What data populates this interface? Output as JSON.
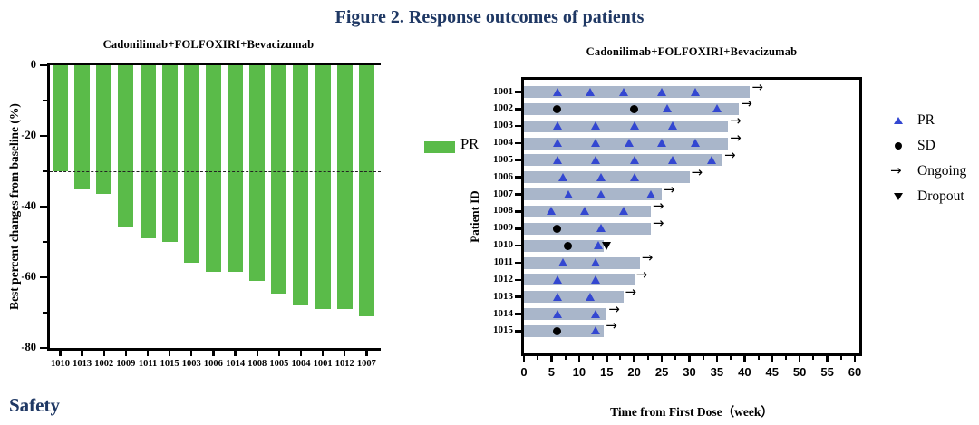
{
  "figure_title": "Figure 2. Response outcomes of patients",
  "section_heading": "Safety",
  "colors": {
    "navy": "#1f3864",
    "bar_green": "#5abb49",
    "swimmer_bar": "#a9b6ca",
    "pr_blue": "#3347d1",
    "black": "#000000"
  },
  "chart_data": [
    {
      "type": "bar",
      "title": "Cadonilimab+FOLFOXIRI+Bevacizumab",
      "ylabel": "Best percent changes from baseline (%)",
      "legend_label": "PR",
      "bar_color": "#5abb49",
      "ylim": [
        -80,
        0
      ],
      "yticks_major": [
        0,
        -20,
        -40,
        -60,
        -80
      ],
      "yticks_minor": [
        -10,
        -30,
        -50,
        -70
      ],
      "reference_line_y": -30,
      "grid": false,
      "categories": [
        "1010",
        "1013",
        "1002",
        "1009",
        "1011",
        "1015",
        "1003",
        "1006",
        "1014",
        "1008",
        "1005",
        "1004",
        "1001",
        "1012",
        "1007"
      ],
      "values": [
        -30,
        -35,
        -36.5,
        -46,
        -49,
        -50,
        -56,
        -58.5,
        -58.5,
        -61,
        -64.5,
        -68,
        -69,
        -69,
        -71
      ]
    },
    {
      "type": "swimmer",
      "title": "Cadonilimab+FOLFOXIRI+Bevacizumab",
      "ylabel": "Patient ID",
      "xlabel": "Time from First Dose（week）",
      "xlim": [
        0,
        60
      ],
      "xticks_major": [
        0,
        5,
        10,
        15,
        20,
        25,
        30,
        35,
        40,
        45,
        50,
        55,
        60
      ],
      "xticks_minor_step": 2.5,
      "bar_color": "#a9b6ca",
      "legend_position": "right",
      "legend": [
        {
          "marker": "pr",
          "label": "PR"
        },
        {
          "marker": "sd",
          "label": "SD"
        },
        {
          "marker": "ongoing",
          "label": "Ongoing"
        },
        {
          "marker": "dropout",
          "label": "Dropout"
        }
      ],
      "patients": [
        {
          "id": "1001",
          "duration": 41,
          "sd": [],
          "pr": [
            6,
            12,
            18,
            25,
            31
          ],
          "dropout": null,
          "ongoing": true
        },
        {
          "id": "1002",
          "duration": 39,
          "sd": [
            6,
            20
          ],
          "pr": [
            26,
            35
          ],
          "dropout": null,
          "ongoing": true
        },
        {
          "id": "1003",
          "duration": 37,
          "sd": [],
          "pr": [
            6,
            13,
            20,
            27
          ],
          "dropout": null,
          "ongoing": true
        },
        {
          "id": "1004",
          "duration": 37,
          "sd": [],
          "pr": [
            6,
            13,
            19,
            25,
            31
          ],
          "dropout": null,
          "ongoing": true
        },
        {
          "id": "1005",
          "duration": 36,
          "sd": [],
          "pr": [
            6,
            13,
            20,
            27,
            34
          ],
          "dropout": null,
          "ongoing": true
        },
        {
          "id": "1006",
          "duration": 30,
          "sd": [],
          "pr": [
            7,
            14,
            20
          ],
          "dropout": null,
          "ongoing": true
        },
        {
          "id": "1007",
          "duration": 25,
          "sd": [],
          "pr": [
            8,
            14,
            23
          ],
          "dropout": null,
          "ongoing": true
        },
        {
          "id": "1008",
          "duration": 23,
          "sd": [],
          "pr": [
            5,
            11,
            18
          ],
          "dropout": null,
          "ongoing": true
        },
        {
          "id": "1009",
          "duration": 23,
          "sd": [
            6
          ],
          "pr": [
            14
          ],
          "dropout": null,
          "ongoing": true
        },
        {
          "id": "1010",
          "duration": 14.5,
          "sd": [
            8
          ],
          "pr": [
            13.5
          ],
          "dropout": 15,
          "ongoing": false
        },
        {
          "id": "1011",
          "duration": 21,
          "sd": [],
          "pr": [
            7,
            13
          ],
          "dropout": null,
          "ongoing": true
        },
        {
          "id": "1012",
          "duration": 20,
          "sd": [],
          "pr": [
            6,
            13
          ],
          "dropout": null,
          "ongoing": true
        },
        {
          "id": "1013",
          "duration": 18,
          "sd": [],
          "pr": [
            6,
            12
          ],
          "dropout": null,
          "ongoing": true
        },
        {
          "id": "1014",
          "duration": 15,
          "sd": [],
          "pr": [
            6,
            13
          ],
          "dropout": null,
          "ongoing": true
        },
        {
          "id": "1015",
          "duration": 14.5,
          "sd": [
            6
          ],
          "pr": [
            13
          ],
          "dropout": null,
          "ongoing": true
        }
      ]
    }
  ]
}
